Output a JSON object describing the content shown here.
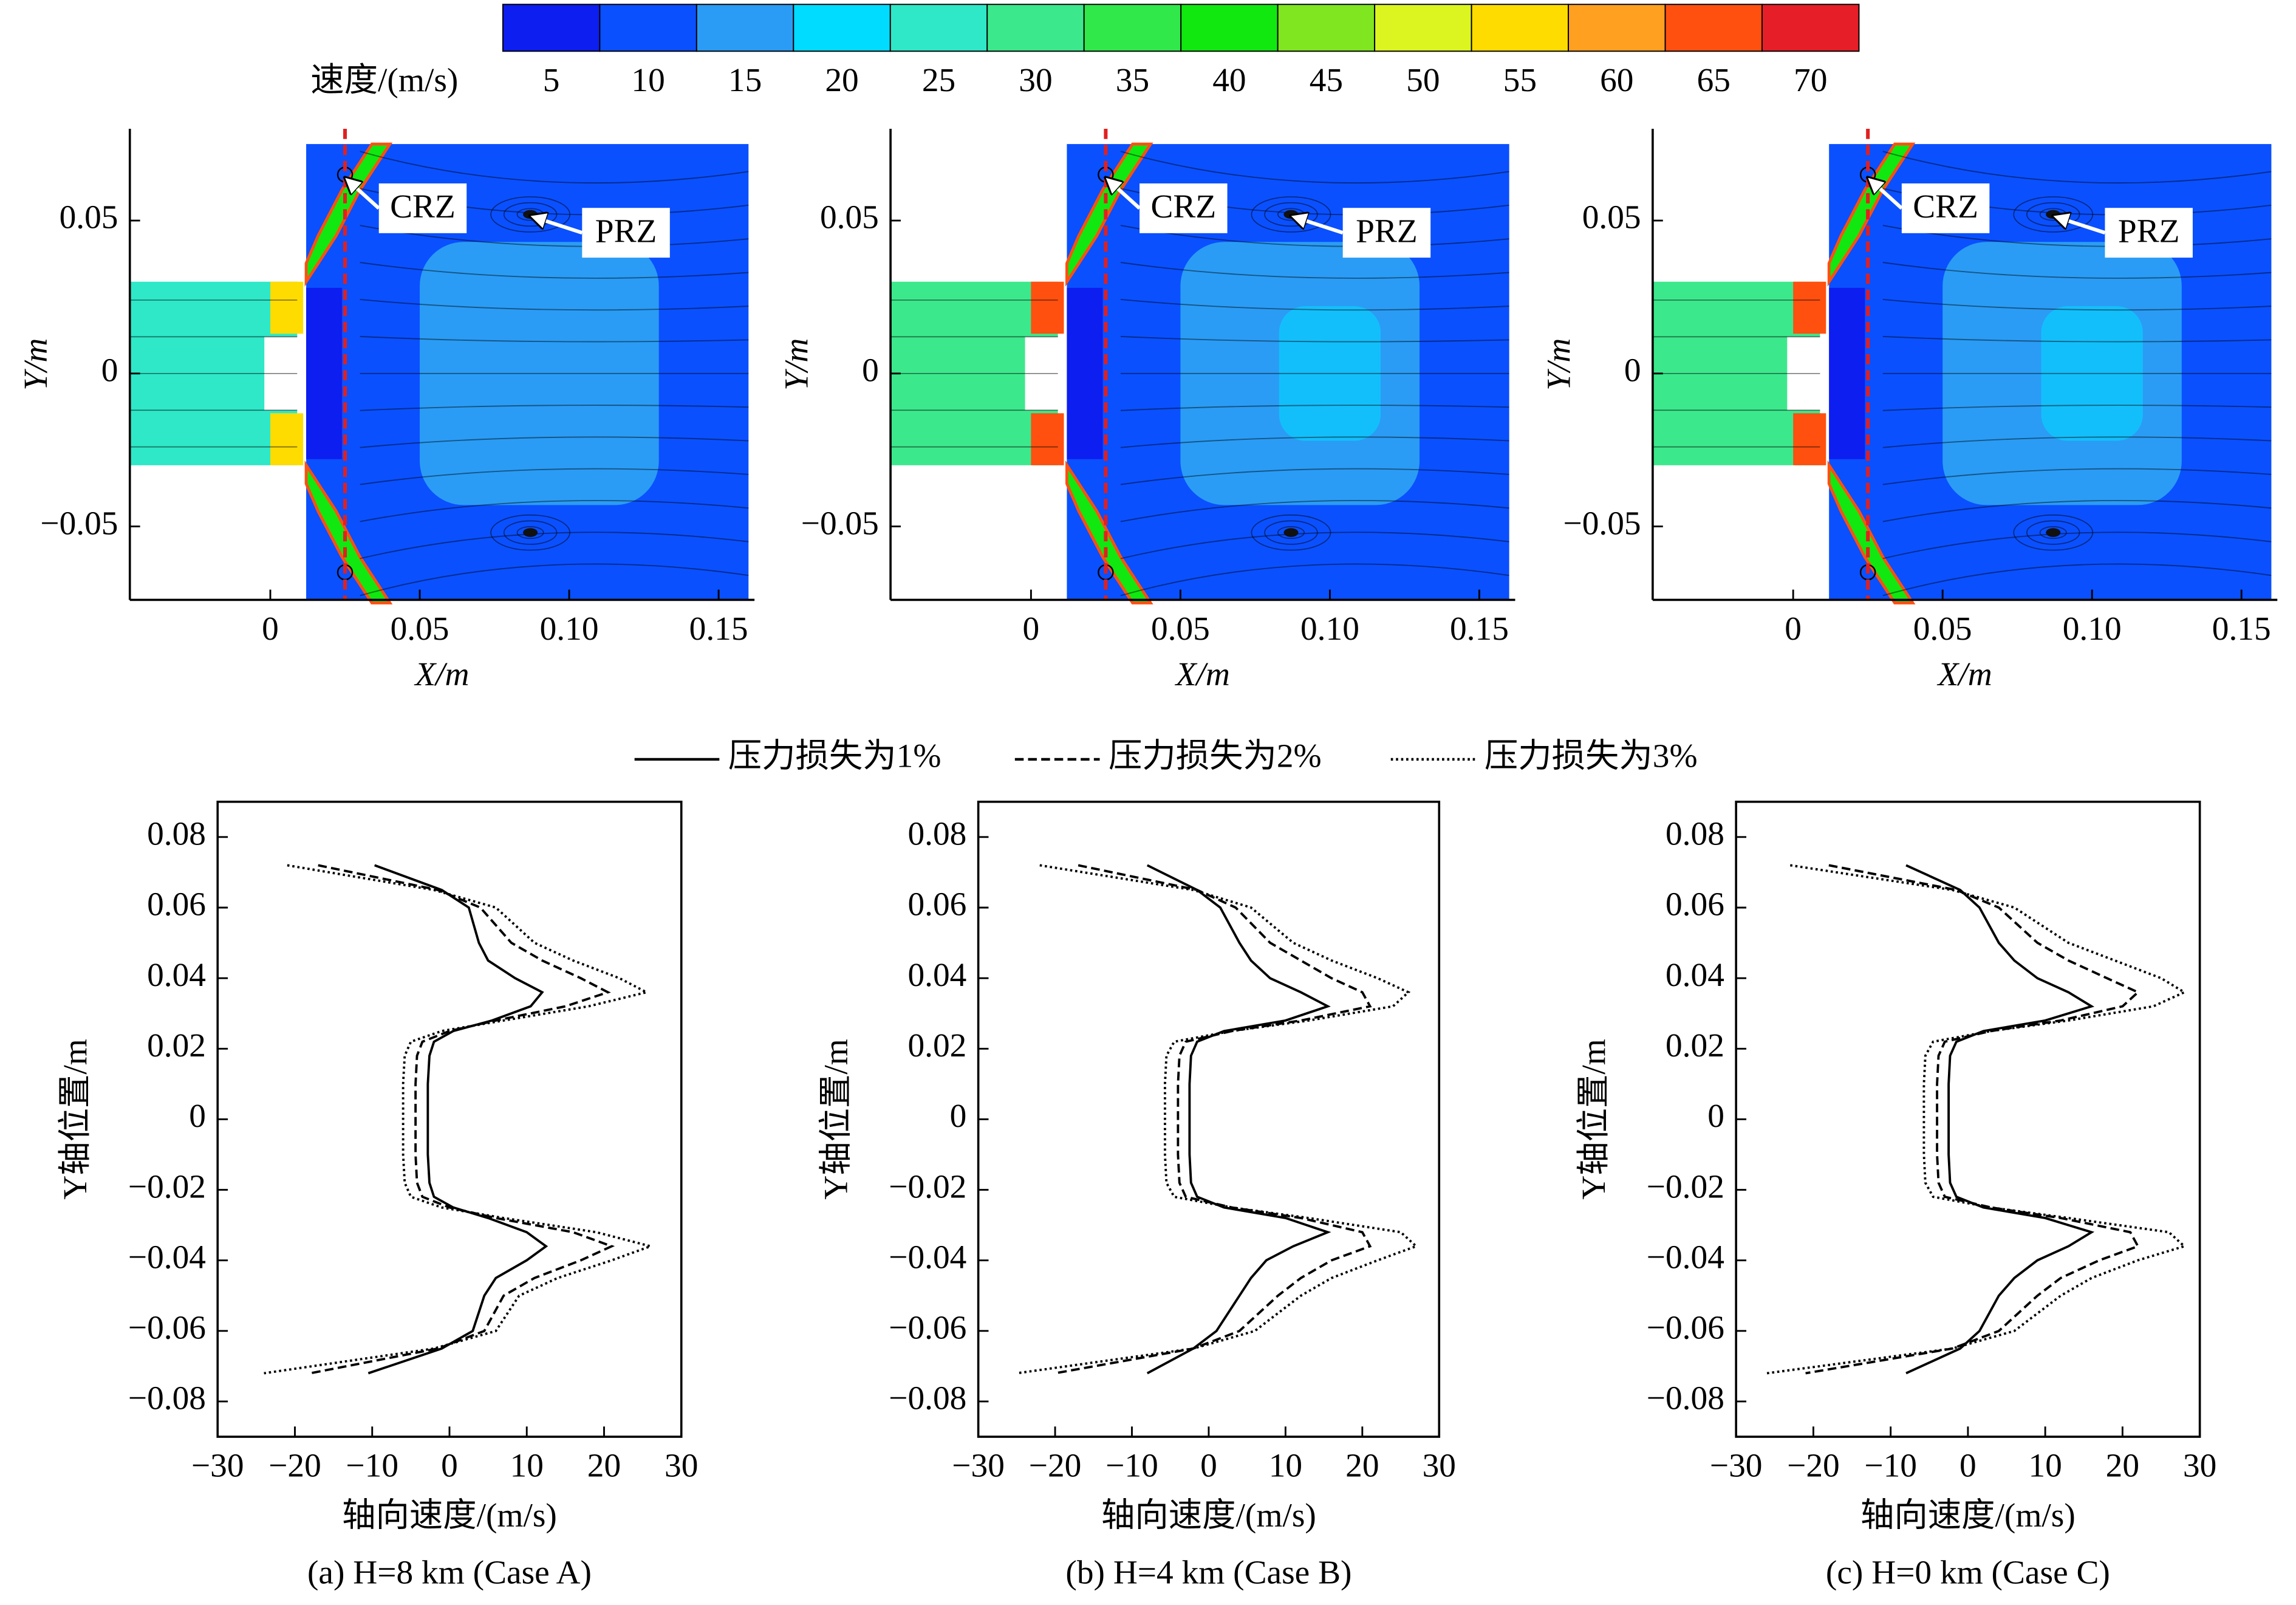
{
  "chart_data": [
    {
      "type": "colorbar",
      "label": "速度/(m/s)",
      "lim": [
        2.5,
        72.5
      ],
      "ticks": [
        5,
        10,
        15,
        20,
        25,
        30,
        35,
        40,
        45,
        50,
        55,
        60,
        65,
        70
      ],
      "colors": [
        "#0d1ef0",
        "#0a50ff",
        "#2a9cf5",
        "#00dcff",
        "#2ee8c8",
        "#3ce88c",
        "#30e84a",
        "#10e810",
        "#80e620",
        "#dcf520",
        "#ffdc00",
        "#ffa020",
        "#ff5010",
        "#e61e28"
      ]
    },
    {
      "type": "contour",
      "xlabel": "X/m",
      "ylabel": "Y/m",
      "annotations": [
        "CRZ",
        "PRZ"
      ],
      "xlim": [
        -0.047,
        0.162
      ],
      "ylim": [
        -0.074,
        0.08
      ],
      "xticks": [
        0,
        0.05,
        {
          "value": 0.1,
          "label": "0.10"
        },
        0.15
      ],
      "yticks": [
        {
          "value": -0.05,
          "label": "−0.05"
        },
        0,
        0.05
      ]
    },
    {
      "type": "contour",
      "xlabel": "X/m",
      "ylabel": "Y/m",
      "annotations": [
        "CRZ",
        "PRZ"
      ],
      "xlim": [
        -0.047,
        0.162
      ],
      "ylim": [
        -0.074,
        0.08
      ],
      "xticks": [
        0,
        0.05,
        {
          "value": 0.1,
          "label": "0.10"
        },
        0.15
      ],
      "yticks": [
        {
          "value": -0.05,
          "label": "−0.05"
        },
        0,
        0.05
      ]
    },
    {
      "type": "contour",
      "xlabel": "X/m",
      "ylabel": "Y/m",
      "annotations": [
        "CRZ",
        "PRZ"
      ],
      "xlim": [
        -0.047,
        0.162
      ],
      "ylim": [
        -0.074,
        0.08
      ],
      "xticks": [
        0,
        0.05,
        {
          "value": 0.1,
          "label": "0.10"
        },
        0.15
      ],
      "yticks": [
        {
          "value": -0.05,
          "label": "−0.05"
        },
        0,
        0.05
      ]
    },
    {
      "type": "line",
      "xlabel": "轴向速度/(m/s)",
      "ylabel": "Y轴位置/m",
      "caption": "(a) H=8 km (Case A)",
      "xlim": [
        -30,
        30
      ],
      "ylim": [
        -0.09,
        0.09
      ],
      "xticks": [
        {
          "value": -30,
          "label": "−30"
        },
        {
          "value": -20,
          "label": "−20"
        },
        {
          "value": -10,
          "label": "−10"
        },
        0,
        10,
        20,
        30
      ],
      "yticks": [
        {
          "value": -0.08,
          "label": "−0.08"
        },
        {
          "value": -0.06,
          "label": "−0.06"
        },
        {
          "value": -0.04,
          "label": "−0.04"
        },
        {
          "value": -0.02,
          "label": "−0.02"
        },
        0,
        0.02,
        0.04,
        0.06,
        0.08
      ],
      "y": [
        0.072,
        0.065,
        0.06,
        0.05,
        0.045,
        0.04,
        0.036,
        0.032,
        0.028,
        0.025,
        0.022,
        0.018,
        0.01,
        0,
        -0.01,
        -0.018,
        -0.022,
        -0.025,
        -0.028,
        -0.032,
        -0.036,
        -0.04,
        -0.045,
        -0.05,
        -0.06,
        -0.065,
        -0.072
      ],
      "series": [
        {
          "name": "压力损失为1%",
          "color": "#000000",
          "style": "solid",
          "values": [
            -9.7,
            -1,
            2.5,
            3.8,
            5,
            8.5,
            12,
            10.5,
            5.5,
            0.5,
            -2,
            -2.6,
            -2.8,
            -2.8,
            -2.8,
            -2.6,
            -2,
            0.5,
            5,
            10,
            12.5,
            10,
            6,
            4.5,
            3,
            -1,
            -10.5
          ]
        },
        {
          "name": "压力损失为2%",
          "color": "#000000",
          "style": "dashed",
          "values": [
            -17,
            -1.5,
            4,
            8,
            12,
            17,
            20.5,
            15,
            6,
            0,
            -3.5,
            -4.2,
            -4.4,
            -4.4,
            -4.4,
            -4.2,
            -3.5,
            0,
            6,
            16,
            21,
            17,
            11,
            7,
            4.5,
            -1.5,
            -18
          ]
        },
        {
          "name": "压力损失为3%",
          "color": "#000000",
          "style": "dotted",
          "values": [
            -21,
            -2,
            6,
            11,
            16,
            22,
            25.5,
            18,
            7,
            -1,
            -5,
            -5.8,
            -6,
            -6,
            -6,
            -5.8,
            -5,
            -1,
            7,
            19,
            26,
            21,
            14,
            9,
            6,
            -2,
            -24
          ]
        }
      ]
    },
    {
      "type": "line",
      "xlabel": "轴向速度/(m/s)",
      "ylabel": "Y轴位置/m",
      "caption": "(b) H=4 km (Case B)",
      "xlim": [
        -30,
        30
      ],
      "ylim": [
        -0.09,
        0.09
      ],
      "xticks": [
        {
          "value": -30,
          "label": "−30"
        },
        {
          "value": -20,
          "label": "−20"
        },
        {
          "value": -10,
          "label": "−10"
        },
        0,
        10,
        20,
        30
      ],
      "yticks": [
        {
          "value": -0.08,
          "label": "−0.08"
        },
        {
          "value": -0.06,
          "label": "−0.06"
        },
        {
          "value": -0.04,
          "label": "−0.04"
        },
        {
          "value": -0.02,
          "label": "−0.02"
        },
        0,
        0.02,
        0.04,
        0.06,
        0.08
      ],
      "y": [
        0.072,
        0.065,
        0.06,
        0.05,
        0.045,
        0.04,
        0.036,
        0.032,
        0.028,
        0.025,
        0.022,
        0.018,
        0.01,
        0,
        -0.01,
        -0.018,
        -0.022,
        -0.025,
        -0.028,
        -0.032,
        -0.036,
        -0.04,
        -0.045,
        -0.05,
        -0.06,
        -0.065,
        -0.072
      ],
      "series": [
        {
          "name": "压力损失为1%",
          "color": "#000000",
          "style": "solid",
          "values": [
            -8,
            -1.5,
            1.5,
            4,
            5.5,
            8,
            12,
            15.5,
            10,
            2,
            -1.5,
            -2.3,
            -2.5,
            -2.5,
            -2.5,
            -2.3,
            -1.5,
            2,
            10,
            15.5,
            11,
            7.5,
            5.5,
            4,
            1,
            -2,
            -8
          ]
        },
        {
          "name": "压力损失为2%",
          "color": "#000000",
          "style": "dashed",
          "values": [
            -17,
            -1.5,
            3.5,
            8,
            12,
            16,
            20,
            21,
            12,
            3,
            -3,
            -3.8,
            -4,
            -4,
            -4,
            -3.8,
            -3,
            3,
            12,
            20,
            21,
            16,
            12,
            9,
            4,
            -2,
            -20
          ]
        },
        {
          "name": "压力损失为3%",
          "color": "#000000",
          "style": "dotted",
          "values": [
            -22,
            -2,
            5.5,
            11,
            16,
            22,
            26,
            24,
            13,
            3,
            -4.5,
            -5.5,
            -5.7,
            -5.7,
            -5.7,
            -5.5,
            -4.5,
            3,
            13,
            25,
            27,
            22,
            16,
            12,
            6,
            -2,
            -25
          ]
        }
      ]
    },
    {
      "type": "line",
      "xlabel": "轴向速度/(m/s)",
      "ylabel": "Y轴位置/m",
      "caption": "(c) H=0 km (Case C)",
      "xlim": [
        -30,
        30
      ],
      "ylim": [
        -0.09,
        0.09
      ],
      "xticks": [
        {
          "value": -30,
          "label": "−30"
        },
        {
          "value": -20,
          "label": "−20"
        },
        {
          "value": -10,
          "label": "−10"
        },
        0,
        10,
        20,
        30
      ],
      "yticks": [
        {
          "value": -0.08,
          "label": "−0.08"
        },
        {
          "value": -0.06,
          "label": "−0.06"
        },
        {
          "value": -0.04,
          "label": "−0.04"
        },
        {
          "value": -0.02,
          "label": "−0.02"
        },
        0,
        0.02,
        0.04,
        0.06,
        0.08
      ],
      "y": [
        0.072,
        0.065,
        0.06,
        0.05,
        0.045,
        0.04,
        0.036,
        0.032,
        0.028,
        0.025,
        0.022,
        0.018,
        0.01,
        0,
        -0.01,
        -0.018,
        -0.022,
        -0.025,
        -0.028,
        -0.032,
        -0.036,
        -0.04,
        -0.045,
        -0.05,
        -0.06,
        -0.065,
        -0.072
      ],
      "series": [
        {
          "name": "压力损失为1%",
          "color": "#000000",
          "style": "solid",
          "values": [
            -8,
            -1,
            1.5,
            4,
            6,
            9,
            13,
            16,
            10,
            2,
            -1.5,
            -2.3,
            -2.5,
            -2.5,
            -2.5,
            -2.3,
            -1.5,
            2,
            10,
            16,
            13,
            9,
            6,
            4,
            1.5,
            -1,
            -8
          ]
        },
        {
          "name": "压力损失为2%",
          "color": "#000000",
          "style": "dashed",
          "values": [
            -18,
            -1.5,
            4,
            9,
            13,
            18,
            22,
            20,
            12,
            3,
            -3,
            -3.8,
            -4,
            -4,
            -4,
            -3.8,
            -3,
            3,
            12,
            21,
            22,
            17,
            12,
            9,
            4,
            -2,
            -21
          ]
        },
        {
          "name": "压力损失为3%",
          "color": "#000000",
          "style": "dotted",
          "values": [
            -23,
            -2,
            6,
            13,
            19,
            25,
            28,
            24,
            13,
            3,
            -4.5,
            -5.5,
            -5.7,
            -5.7,
            -5.7,
            -5.5,
            -4.5,
            3,
            13,
            26,
            28,
            22,
            16,
            12,
            6,
            -2,
            -26
          ]
        }
      ]
    }
  ]
}
